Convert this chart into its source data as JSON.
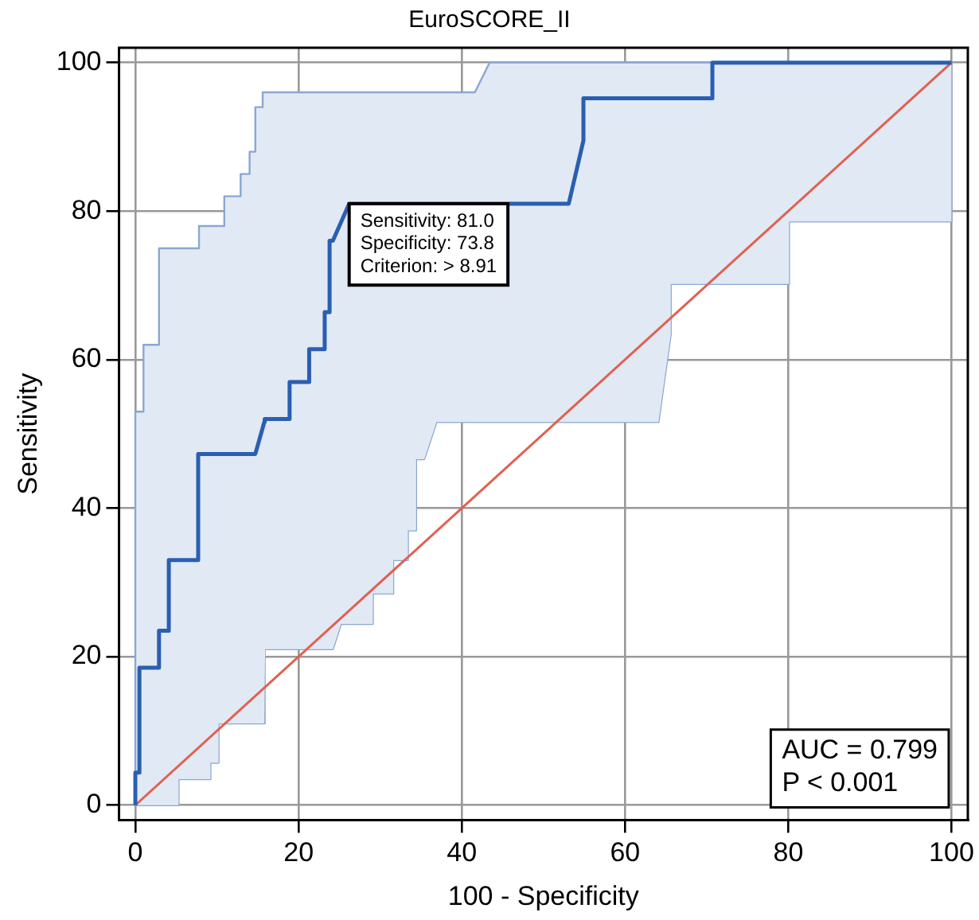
{
  "chart_data": {
    "type": "line",
    "title": "EuroSCORE_II",
    "xlabel": "100 - Specificity",
    "ylabel": "Sensitivity",
    "xlim": [
      -2,
      102
    ],
    "ylim": [
      -2,
      102
    ],
    "xticks": [
      0,
      20,
      40,
      60,
      80,
      100
    ],
    "yticks": [
      0,
      20,
      40,
      60,
      80,
      100
    ],
    "grid": true,
    "legend": false,
    "marker": "none",
    "line_style": "solid",
    "series": [
      {
        "color": "#e06050",
        "x": [
          0,
          100
        ],
        "values": [
          0,
          100
        ]
      },
      {
        "color": "#2a5fb0",
        "x": [
          0,
          0,
          0.5,
          0.5,
          1,
          1,
          2.9,
          2.9,
          4.1,
          4.1,
          5.3,
          5.3,
          7.7,
          7.7,
          7.8,
          7.8,
          9.2,
          9.2,
          10.2,
          10.2,
          10.9,
          10.9,
          12.9,
          12.9,
          14,
          14,
          14.7,
          14.7,
          15.6,
          15.6,
          15.8,
          15.8,
          15.9,
          18.9,
          18.9,
          21.3,
          21.3,
          23.2,
          23.2,
          23.8,
          23.8,
          24.2,
          25.2,
          26.2,
          29.1,
          29.1,
          31.6,
          31.6,
          33.4,
          33.4,
          34.4,
          34.4,
          35.4,
          36.9,
          41.6,
          43.4,
          53.1,
          54.9,
          54.9,
          64.1,
          65.6,
          65.6,
          70.7,
          70.7,
          80.1,
          80.1,
          100,
          100
        ],
        "values": [
          0,
          4.4,
          4.4,
          18.5,
          18.5,
          18.5,
          18.5,
          23.5,
          23.5,
          33,
          33,
          33,
          33,
          47.3,
          47.3,
          47.3,
          47.3,
          47.3,
          47.3,
          47.3,
          47.3,
          47.3,
          47.3,
          47.3,
          47.3,
          47.3,
          47.3,
          47.3,
          50.8,
          50.8,
          51.6,
          51.6,
          52,
          52,
          57,
          57,
          61.4,
          61.4,
          66.4,
          66.4,
          76,
          76,
          78.5,
          81,
          81,
          81,
          81,
          81,
          81,
          81,
          81,
          81,
          81,
          81,
          81,
          81,
          81,
          89.5,
          95.2,
          95.2,
          95.2,
          95.2,
          95.2,
          100,
          100,
          100,
          100,
          100
        ],
        "lower": [
          0,
          0,
          0,
          0,
          0,
          0,
          0,
          0,
          0,
          0,
          0,
          3.5,
          3.5,
          3.5,
          3.5,
          3.5,
          3.5,
          5.7,
          5.7,
          11,
          11,
          11,
          11,
          11,
          11,
          11,
          11,
          11,
          11,
          11,
          11,
          21,
          21,
          21,
          21,
          21,
          21,
          21,
          21,
          21,
          21,
          21,
          24.4,
          24.4,
          24.4,
          28.5,
          28.5,
          33,
          33,
          37,
          37,
          46.6,
          46.6,
          51.6,
          51.6,
          51.6,
          51.6,
          51.6,
          51.6,
          51.6,
          63.4,
          70.2,
          70.2,
          70.2,
          70.2,
          78.6,
          78.6,
          100
        ],
        "upper": [
          0,
          53,
          53,
          53,
          53,
          62,
          62,
          75,
          75,
          75,
          75,
          75,
          75,
          75,
          75,
          78,
          78,
          78,
          78,
          78,
          78,
          82,
          82,
          85,
          85,
          88,
          88,
          94,
          94,
          96,
          96,
          96,
          96,
          96,
          96,
          96,
          96,
          96,
          96,
          96,
          96,
          96,
          96,
          96,
          96,
          96,
          96,
          96,
          96,
          96,
          96,
          96,
          96,
          96,
          96,
          100,
          100,
          100,
          100,
          100,
          100,
          100,
          100,
          100,
          100,
          100,
          100,
          100
        ]
      }
    ],
    "annotations": [
      {
        "text": "Sensitivity: 81.0\nSpecificity: 73.8\nCriterion: > 8.91",
        "x": 26.2,
        "y": 81
      },
      "AUC = 0.799\nP < 0.001"
    ]
  }
}
